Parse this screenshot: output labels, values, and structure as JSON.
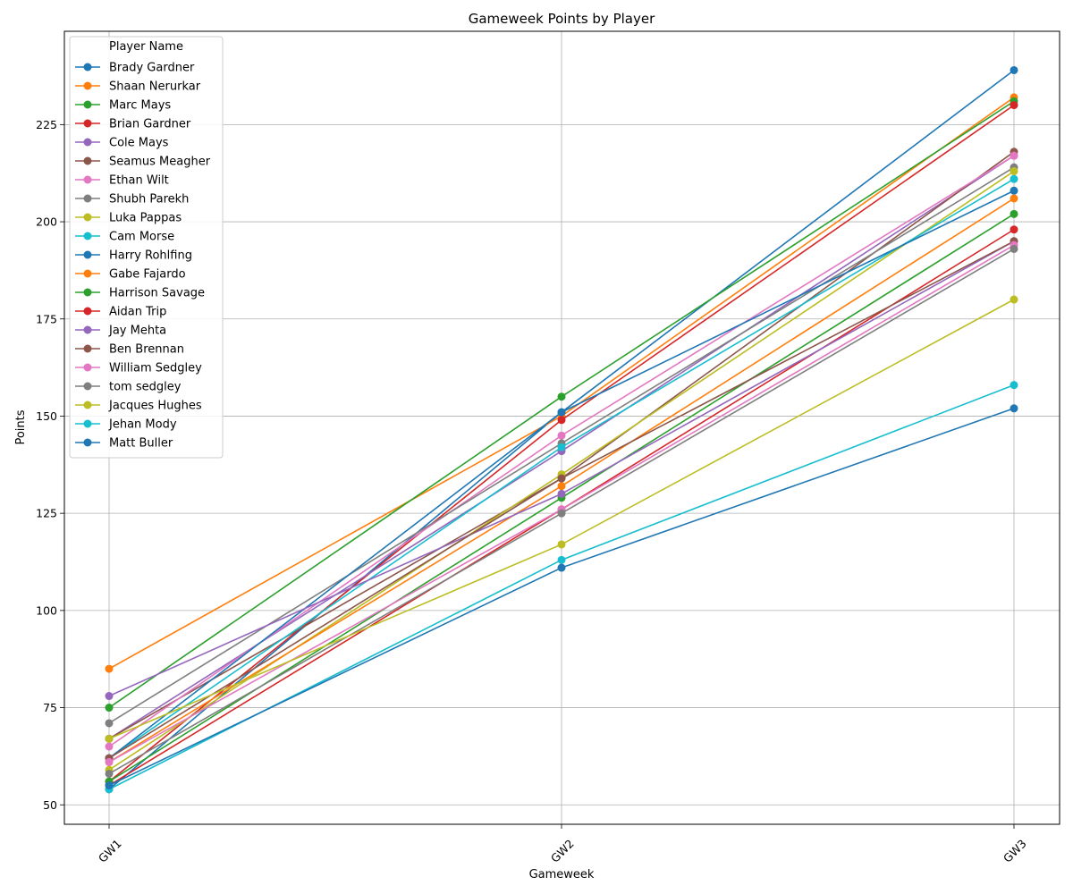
{
  "chart_data": {
    "type": "line",
    "title": "Gameweek Points by Player",
    "xlabel": "Gameweek",
    "ylabel": "Points",
    "categories": [
      "GW1",
      "GW2",
      "GW3"
    ],
    "ylim": [
      45,
      249
    ],
    "yticks": [
      50,
      75,
      100,
      125,
      150,
      175,
      200,
      225
    ],
    "grid": true,
    "legend": {
      "title": "Player Name",
      "placement": "top-left"
    },
    "series": [
      {
        "name": "Brady Gardner",
        "color": "#1f77b4",
        "values": [
          54,
          151,
          239
        ]
      },
      {
        "name": "Shaan Nerurkar",
        "color": "#ff7f0e",
        "values": [
          85,
          150,
          232
        ]
      },
      {
        "name": "Marc Mays",
        "color": "#2ca02c",
        "values": [
          75,
          155,
          231
        ]
      },
      {
        "name": "Brian Gardner",
        "color": "#d62728",
        "values": [
          56,
          149,
          230
        ]
      },
      {
        "name": "Cole Mays",
        "color": "#9467bd",
        "values": [
          67,
          141,
          217
        ]
      },
      {
        "name": "Seamus Meagher",
        "color": "#8c564b",
        "values": [
          67,
          134,
          218
        ]
      },
      {
        "name": "Ethan Wilt",
        "color": "#e377c2",
        "values": [
          65,
          145,
          217
        ]
      },
      {
        "name": "Shubh Parekh",
        "color": "#7f7f7f",
        "values": [
          71,
          143,
          214
        ]
      },
      {
        "name": "Luka Pappas",
        "color": "#bcbd22",
        "values": [
          59,
          135,
          213
        ]
      },
      {
        "name": "Cam Morse",
        "color": "#17becf",
        "values": [
          62,
          142,
          211
        ]
      },
      {
        "name": "Harry Rohlfing",
        "color": "#1f77b4",
        "values": [
          62,
          151,
          208
        ]
      },
      {
        "name": "Gabe Fajardo",
        "color": "#ff7f0e",
        "values": [
          61,
          132,
          206
        ]
      },
      {
        "name": "Harrison Savage",
        "color": "#2ca02c",
        "values": [
          56,
          129,
          202
        ]
      },
      {
        "name": "Aidan Trip",
        "color": "#d62728",
        "values": [
          55,
          126,
          198
        ]
      },
      {
        "name": "Jay Mehta",
        "color": "#9467bd",
        "values": [
          78,
          130,
          195
        ]
      },
      {
        "name": "Ben Brennan",
        "color": "#8c564b",
        "values": [
          62,
          134,
          195
        ]
      },
      {
        "name": "William Sedgley",
        "color": "#e377c2",
        "values": [
          61,
          126,
          194
        ]
      },
      {
        "name": "tom sedgley",
        "color": "#7f7f7f",
        "values": [
          58,
          125,
          193
        ]
      },
      {
        "name": "Jacques Hughes",
        "color": "#bcbd22",
        "values": [
          67,
          117,
          180
        ]
      },
      {
        "name": "Jehan Mody",
        "color": "#17becf",
        "values": [
          54,
          113,
          158
        ]
      },
      {
        "name": "Matt Buller",
        "color": "#1f77b4",
        "values": [
          55,
          111,
          152
        ]
      }
    ]
  }
}
